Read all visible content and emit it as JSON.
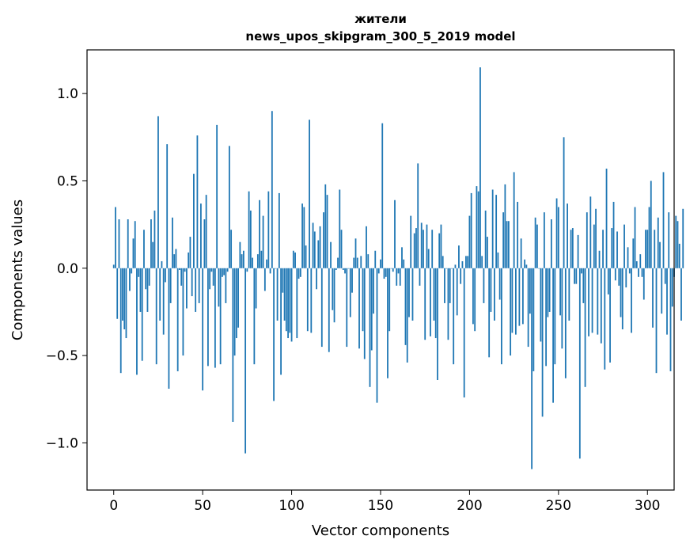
{
  "chart_data": {
    "type": "bar",
    "title": "жители",
    "subtitle": "news_upos_skipgram_300_5_2019 model",
    "xlabel": "Vector components",
    "ylabel": "Components values",
    "xlim": [
      -15,
      315
    ],
    "ylim": [
      -1.27,
      1.25
    ],
    "xticks": [
      0,
      50,
      100,
      150,
      200,
      250,
      300
    ],
    "yticks": [
      -1.0,
      -0.5,
      0.0,
      0.5,
      1.0
    ],
    "xtick_labels": [
      "0",
      "50",
      "100",
      "150",
      "200",
      "250",
      "300"
    ],
    "ytick_labels": [
      "−1.0",
      "−0.5",
      "0.0",
      "0.5",
      "1.0"
    ],
    "bar_color": "#1f77b4",
    "series": [
      {
        "name": "жители",
        "values": [
          0.02,
          0.35,
          -0.29,
          0.28,
          -0.6,
          -0.3,
          -0.35,
          -0.4,
          0.28,
          -0.13,
          -0.03,
          0.17,
          0.27,
          -0.61,
          -0.05,
          -0.25,
          -0.53,
          0.22,
          -0.12,
          -0.25,
          -0.1,
          0.28,
          0.15,
          0.33,
          -0.55,
          0.87,
          -0.3,
          0.04,
          -0.38,
          -0.08,
          0.71,
          -0.69,
          -0.2,
          0.29,
          0.08,
          0.11,
          -0.59,
          -0.01,
          -0.1,
          -0.5,
          -0.02,
          -0.23,
          0.09,
          0.18,
          -0.16,
          0.54,
          -0.25,
          0.76,
          -0.2,
          0.37,
          -0.7,
          0.28,
          0.42,
          -0.56,
          -0.12,
          -0.02,
          -0.1,
          -0.57,
          0.82,
          -0.22,
          -0.55,
          -0.05,
          -0.04,
          -0.2,
          -0.02,
          0.7,
          0.22,
          -0.88,
          -0.5,
          -0.4,
          -0.34,
          0.15,
          0.08,
          0.1,
          -1.06,
          -0.02,
          0.44,
          0.33,
          0.06,
          -0.55,
          -0.23,
          0.08,
          0.39,
          0.1,
          0.3,
          -0.13,
          0.05,
          0.44,
          -0.03,
          0.9,
          -0.76,
          0.0,
          -0.3,
          0.43,
          -0.61,
          -0.14,
          -0.3,
          -0.36,
          -0.4,
          -0.37,
          -0.42,
          0.1,
          0.09,
          -0.4,
          -0.06,
          -0.05,
          0.37,
          0.35,
          0.13,
          -0.36,
          0.85,
          -0.37,
          0.26,
          0.21,
          -0.12,
          0.16,
          0.24,
          -0.45,
          0.32,
          0.48,
          0.42,
          -0.48,
          0.15,
          -0.24,
          -0.31,
          -0.01,
          0.06,
          0.45,
          0.22,
          -0.01,
          -0.03,
          -0.45,
          0.0,
          -0.28,
          -0.14,
          0.06,
          0.17,
          0.06,
          -0.46,
          0.07,
          -0.36,
          -0.52,
          0.24,
          0.08,
          -0.68,
          -0.47,
          -0.26,
          0.1,
          -0.77,
          -0.03,
          0.05,
          0.83,
          -0.06,
          -0.05,
          -0.63,
          -0.36,
          0.0,
          -0.02,
          0.39,
          -0.1,
          -0.03,
          -0.1,
          0.12,
          0.05,
          -0.44,
          -0.54,
          -0.28,
          0.3,
          -0.3,
          0.2,
          0.23,
          0.6,
          -0.1,
          0.26,
          0.22,
          -0.41,
          0.25,
          0.11,
          -0.39,
          0.22,
          -0.3,
          -0.4,
          -0.64,
          0.2,
          0.25,
          0.07,
          -0.2,
          0.0,
          -0.41,
          -0.2,
          0.0,
          -0.55,
          0.02,
          -0.27,
          0.13,
          -0.09,
          0.04,
          -0.74,
          0.07,
          0.07,
          0.3,
          0.43,
          -0.32,
          -0.36,
          0.47,
          0.44,
          1.15,
          0.07,
          -0.2,
          0.33,
          0.18,
          -0.51,
          -0.25,
          0.45,
          -0.3,
          0.42,
          0.09,
          -0.18,
          -0.55,
          0.32,
          0.48,
          0.27,
          0.27,
          -0.5,
          -0.37,
          0.55,
          -0.38,
          0.38,
          -0.33,
          0.17,
          -0.32,
          0.05,
          0.02,
          -0.45,
          -0.26,
          -1.15,
          -0.59,
          0.29,
          0.25,
          0.0,
          -0.42,
          -0.85,
          0.32,
          -0.56,
          -0.28,
          -0.25,
          0.28,
          -0.77,
          -0.55,
          0.4,
          0.35,
          -0.27,
          -0.46,
          0.75,
          -0.63,
          0.37,
          -0.3,
          0.22,
          0.23,
          -0.09,
          -0.09,
          0.19,
          -1.09,
          -0.03,
          -0.2,
          -0.68,
          0.32,
          -0.39,
          0.41,
          -0.37,
          0.25,
          0.34,
          -0.38,
          0.1,
          -0.43,
          0.22,
          -0.58,
          0.57,
          -0.15,
          -0.54,
          0.23,
          0.38,
          -0.07,
          0.21,
          -0.1,
          -0.28,
          -0.35,
          0.25,
          -0.11,
          0.12,
          -0.03,
          -0.37,
          0.17,
          0.35,
          0.04,
          -0.05,
          0.08,
          -0.05,
          -0.18,
          0.22,
          0.22,
          0.35,
          0.5,
          -0.34,
          0.22,
          -0.6,
          0.29,
          0.15,
          -0.26,
          0.55,
          -0.09,
          -0.38,
          0.32,
          -0.59,
          -0.22,
          -0.05,
          0.3,
          0.27,
          0.14,
          -0.3,
          0.34
        ]
      }
    ]
  }
}
